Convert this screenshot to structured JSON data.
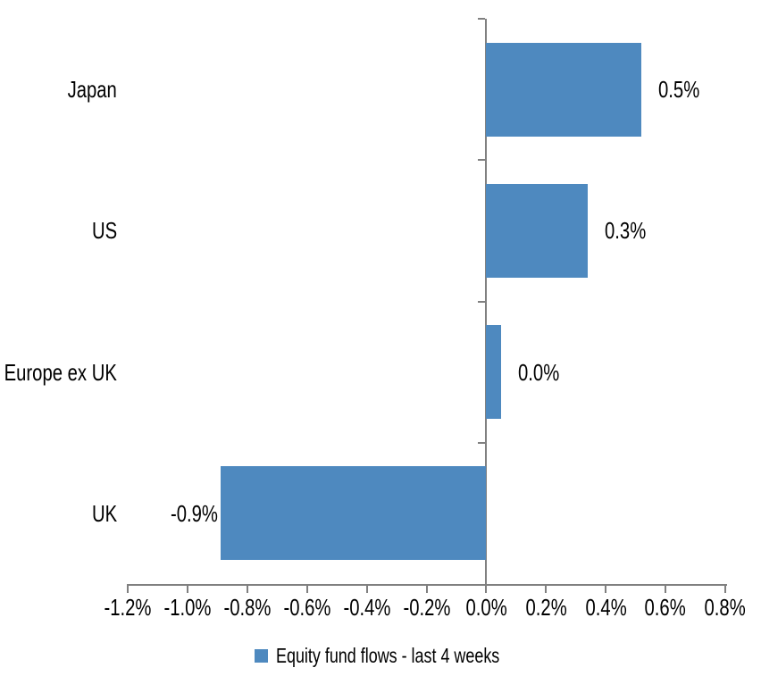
{
  "chart_data": {
    "type": "bar",
    "orientation": "horizontal",
    "title": "",
    "categories": [
      "Japan",
      "US",
      "Europe ex UK",
      "UK"
    ],
    "series": [
      {
        "name": "Equity fund flows - last 4 weeks",
        "values": [
          0.5,
          0.3,
          0.0,
          -0.9
        ],
        "data_labels": [
          "0.5%",
          "0.3%",
          "0.0%",
          "-0.9%"
        ],
        "bar_extents": [
          0.52,
          0.34,
          0.05,
          -0.89
        ]
      }
    ],
    "xlabel": "",
    "ylabel": "",
    "xlim": [
      -1.2,
      0.8
    ],
    "x_tick_values": [
      -1.2,
      -1.0,
      -0.8,
      -0.6,
      -0.4,
      -0.2,
      0.0,
      0.2,
      0.4,
      0.6,
      0.8
    ],
    "x_tick_labels": [
      "-1.2%",
      "-1.0%",
      "-0.8%",
      "-0.6%",
      "-0.4%",
      "-0.2%",
      "0.0%",
      "0.2%",
      "0.4%",
      "0.6%",
      "0.8%"
    ],
    "grid": false,
    "legend_position": "bottom",
    "colors": {
      "bar": "#4E89BF",
      "axis": "#808080",
      "text": "#000000",
      "background": "#FFFFFF"
    }
  },
  "legend": {
    "swatch_color": "#4E89BF",
    "label": "Equity fund flows - last 4 weeks"
  }
}
